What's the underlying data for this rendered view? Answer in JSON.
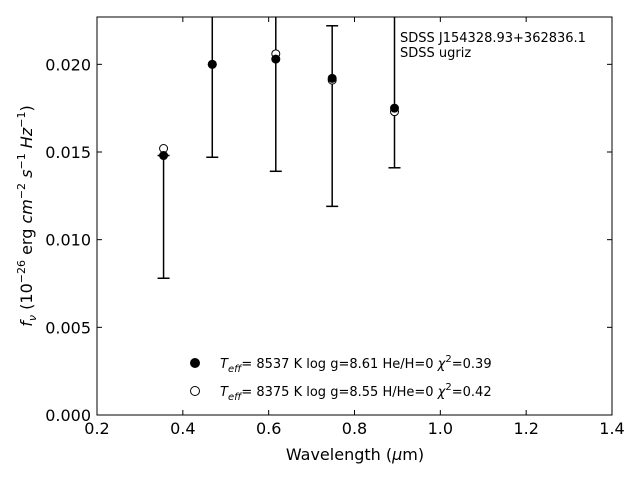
{
  "chart_data": {
    "type": "scatter",
    "title": "",
    "xlabel": "Wavelength (μm)",
    "ylabel": "f_ν (10^-26 erg cm^-2 s^-1 Hz^-1)",
    "xlim": [
      0.2,
      1.4
    ],
    "ylim": [
      0.0,
      0.0227
    ],
    "xticks": [
      "0.2",
      "0.4",
      "0.6",
      "0.8",
      "1.0",
      "1.2",
      "1.4"
    ],
    "yticks": [
      "0.000",
      "0.005",
      "0.010",
      "0.015",
      "0.020"
    ],
    "annotation": [
      "SDSS J154328.93+362836.1",
      "SDSS ugriz"
    ],
    "legend_placement": "lower-center",
    "observed": {
      "x": [
        0.3551,
        0.4686,
        0.6166,
        0.748,
        0.8932
      ],
      "upper": [
        0.0148,
        0.0227,
        0.0227,
        0.0222,
        0.0227
      ],
      "lower": [
        0.0078,
        0.0147,
        0.0139,
        0.0119,
        0.0141
      ]
    },
    "series": [
      {
        "name": "He/H=0",
        "marker": "filled-circle",
        "legend_label": {
          "teff": "8537",
          "logg": "8.61",
          "comp": "He/H=0",
          "chi2": "0.39"
        },
        "x": [
          0.3551,
          0.4686,
          0.6166,
          0.748,
          0.8932
        ],
        "y": [
          0.0148,
          0.02,
          0.0203,
          0.0192,
          0.0175
        ]
      },
      {
        "name": "H/He=0",
        "marker": "open-circle",
        "legend_label": {
          "teff": "8375",
          "logg": "8.55",
          "comp": "H/He=0",
          "chi2": "0.42"
        },
        "x": [
          0.3551,
          0.4686,
          0.6166,
          0.748,
          0.8932
        ],
        "y": [
          0.0152,
          0.02,
          0.0206,
          0.0191,
          0.0173
        ]
      }
    ]
  }
}
